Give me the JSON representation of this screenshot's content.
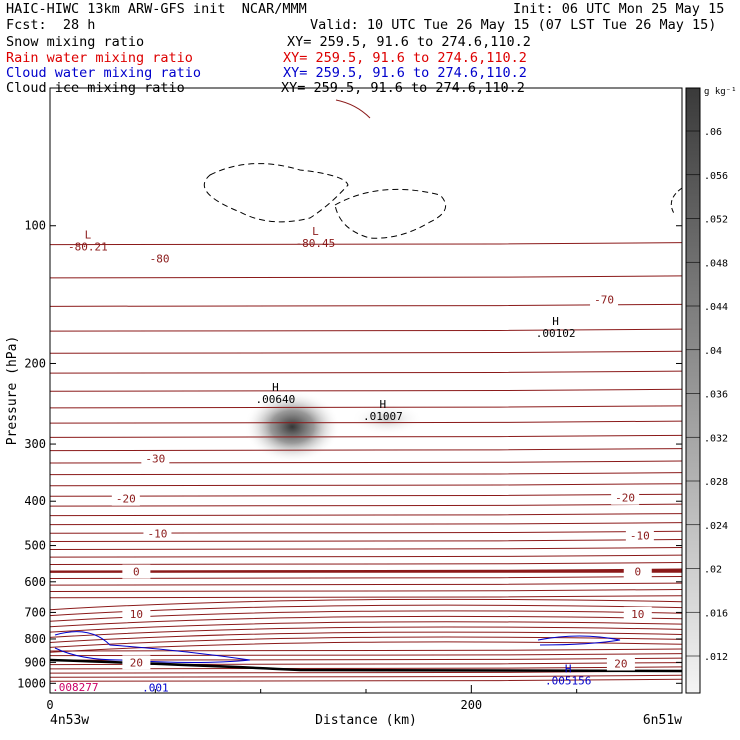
{
  "header": {
    "title_left": "HAIC-HIWC 13km ARW-GFS init  NCAR/MMM",
    "init": "Init: 06 UTC Mon 25 May 15",
    "fcst": "Fcst:  28 h",
    "valid": "Valid: 10 UTC Tue 26 May 15 (07 LST Tue 26 May 15)",
    "fields": [
      {
        "name": "Snow mixing ratio",
        "xy": "XY= 259.5, 91.6 to 274.6,110.2",
        "color": "#000000"
      },
      {
        "name": "Rain water mixing ratio",
        "xy": "XY= 259.5, 91.6 to 274.6,110.2",
        "color": "#dd0000"
      },
      {
        "name": "Cloud water mixing ratio",
        "xy": "XY= 259.5, 91.6 to 274.6,110.2",
        "color": "#0000cc"
      },
      {
        "name": "Cloud ice mixing ratio",
        "xy": "XY= 259.5, 91.6 to 274.6,110.2",
        "color": "#000000"
      }
    ]
  },
  "chart_data": {
    "type": "heatmap",
    "xlabel": "Distance (km)",
    "ylabel": "Pressure (hPa)",
    "xlim": [
      0,
      300
    ],
    "ylim": [
      1050,
      50
    ],
    "y_scale": "log",
    "x_ticks": [
      0,
      200
    ],
    "x_minor_ticks": [
      50,
      100,
      150,
      250
    ],
    "y_ticks": [
      100,
      200,
      300,
      400,
      500,
      600,
      700,
      800,
      900,
      1000
    ],
    "x_endpoint_labels": [
      "4n53w",
      "6n51w"
    ],
    "colorbar": {
      "unit": "g kg⁻¹",
      "ticks": [
        ".06",
        ".056",
        ".052",
        ".048",
        ".044",
        ".04",
        ".036",
        ".032",
        ".028",
        ".024",
        ".02",
        ".016",
        ".012"
      ]
    },
    "shading_max": {
      "x": 115,
      "p": 275
    },
    "temperature_contour_labels": [
      {
        "text": "-80",
        "x": 52,
        "p": 118
      },
      {
        "text": "-70",
        "x": 263,
        "p": 145
      },
      {
        "text": "-30",
        "x": 50,
        "p": 323
      },
      {
        "text": "-20",
        "x": 36,
        "p": 395
      },
      {
        "text": "-20",
        "x": 273,
        "p": 393
      },
      {
        "text": "-10",
        "x": 51,
        "p": 470
      },
      {
        "text": "-10",
        "x": 280,
        "p": 475
      },
      {
        "text": "0",
        "x": 41,
        "p": 570
      },
      {
        "text": "0",
        "x": 279,
        "p": 570
      },
      {
        "text": "10",
        "x": 41,
        "p": 705
      },
      {
        "text": "10",
        "x": 279,
        "p": 705
      },
      {
        "text": "20",
        "x": 41,
        "p": 900
      },
      {
        "text": "20",
        "x": 271,
        "p": 905
      }
    ],
    "extrema": [
      {
        "kind": "L",
        "value": "-80.21",
        "x": 18,
        "p": 110,
        "color": "#8b1a1a"
      },
      {
        "kind": "L",
        "value": "-80.45",
        "x": 126,
        "p": 108,
        "color": "#8b1a1a"
      },
      {
        "kind": "H",
        "value": ".00102",
        "x": 240,
        "p": 170,
        "color": "#000000"
      },
      {
        "kind": "H",
        "value": ".00640",
        "x": 107,
        "p": 237,
        "color": "#000000"
      },
      {
        "kind": "H",
        "value": ".01007",
        "x": 158,
        "p": 258,
        "color": "#000000"
      },
      {
        "kind": "H",
        "value": ".005156",
        "x": 246,
        "p": 975,
        "color": "#0000cc"
      },
      {
        "kind": "",
        "value": ".008277",
        "x": 12,
        "p": 1008,
        "color": "#cc0066"
      },
      {
        "kind": "",
        "value": ".001",
        "x": 50,
        "p": 1010,
        "color": "#0000cc"
      }
    ]
  }
}
